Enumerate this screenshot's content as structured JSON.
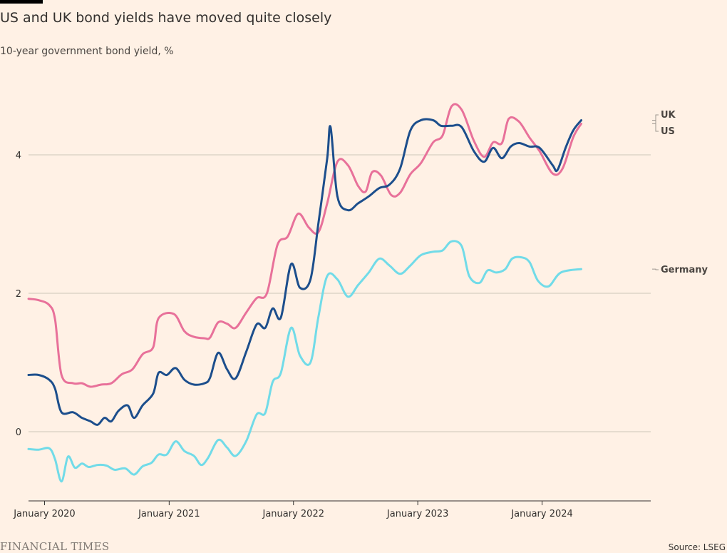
{
  "header": {
    "title": "US and UK bond yields have moved quite closely",
    "subtitle": "10-year government bond yield, %"
  },
  "footer": {
    "logo": "FINANCIAL TIMES",
    "source": "Source: LSEG"
  },
  "colors": {
    "background": "#FFF1E5",
    "UK": "#E8719A",
    "US": "#1C4E8C",
    "Germany": "#71DBE8",
    "gridline": "#CEC6B9",
    "axis": "#33302E"
  },
  "chart_data": {
    "type": "line",
    "title": "US and UK bond yields have moved quite closely",
    "subtitle": "10-year government bond yield, %",
    "xlabel": "",
    "ylabel": "",
    "xlim": [
      "2019-11-15",
      "2024-11-15"
    ],
    "ylim": [
      -1,
      5
    ],
    "y_ticks": [
      0,
      2,
      4
    ],
    "x_ticks": [
      "2020-01-01",
      "2021-01-01",
      "2022-01-01",
      "2023-01-01",
      "2024-01-01"
    ],
    "x_tick_labels": [
      "January 2020",
      "January 2021",
      "January 2022",
      "January 2023",
      "January 2024"
    ],
    "grid": true,
    "legend": "end-of-line labels",
    "series": [
      {
        "name": "UK",
        "points": [
          [
            "2019-11-15",
            1.92
          ],
          [
            "2019-12-15",
            1.9
          ],
          [
            "2020-01-15",
            1.83
          ],
          [
            "2020-02-01",
            1.62
          ],
          [
            "2020-02-20",
            0.82
          ],
          [
            "2020-03-25",
            0.7
          ],
          [
            "2020-04-20",
            0.7
          ],
          [
            "2020-05-15",
            0.65
          ],
          [
            "2020-06-15",
            0.68
          ],
          [
            "2020-07-15",
            0.7
          ],
          [
            "2020-08-15",
            0.83
          ],
          [
            "2020-09-15",
            0.9
          ],
          [
            "2020-10-15",
            1.12
          ],
          [
            "2020-11-15",
            1.22
          ],
          [
            "2020-12-01",
            1.64
          ],
          [
            "2021-01-15",
            1.7
          ],
          [
            "2021-02-15",
            1.45
          ],
          [
            "2021-03-15",
            1.37
          ],
          [
            "2021-04-15",
            1.35
          ],
          [
            "2021-05-01",
            1.36
          ],
          [
            "2021-05-25",
            1.58
          ],
          [
            "2021-06-20",
            1.56
          ],
          [
            "2021-07-15",
            1.5
          ],
          [
            "2021-08-15",
            1.72
          ],
          [
            "2021-09-15",
            1.93
          ],
          [
            "2021-10-15",
            2.0
          ],
          [
            "2021-11-15",
            2.7
          ],
          [
            "2021-12-15",
            2.82
          ],
          [
            "2022-01-15",
            3.15
          ],
          [
            "2022-02-15",
            2.95
          ],
          [
            "2022-03-15",
            2.88
          ],
          [
            "2022-04-10",
            3.3
          ],
          [
            "2022-05-10",
            3.9
          ],
          [
            "2022-06-10",
            3.85
          ],
          [
            "2022-07-10",
            3.55
          ],
          [
            "2022-08-01",
            3.47
          ],
          [
            "2022-08-20",
            3.75
          ],
          [
            "2022-09-15",
            3.7
          ],
          [
            "2022-10-15",
            3.42
          ],
          [
            "2022-11-10",
            3.45
          ],
          [
            "2022-12-10",
            3.72
          ],
          [
            "2023-01-10",
            3.88
          ],
          [
            "2023-02-15",
            4.18
          ],
          [
            "2023-03-15",
            4.28
          ],
          [
            "2023-04-10",
            4.7
          ],
          [
            "2023-05-10",
            4.65
          ],
          [
            "2023-06-15",
            4.2
          ],
          [
            "2023-07-15",
            3.97
          ],
          [
            "2023-08-10",
            4.18
          ],
          [
            "2023-09-05",
            4.17
          ],
          [
            "2023-09-25",
            4.52
          ],
          [
            "2023-10-25",
            4.48
          ],
          [
            "2023-11-25",
            4.25
          ],
          [
            "2023-12-25",
            4.05
          ],
          [
            "2024-02-01",
            3.73
          ],
          [
            "2024-03-01",
            3.8
          ],
          [
            "2024-04-01",
            4.25
          ],
          [
            "2024-04-25",
            4.45
          ]
        ]
      },
      {
        "name": "US",
        "points": [
          [
            "2019-11-15",
            0.82
          ],
          [
            "2019-12-15",
            0.82
          ],
          [
            "2020-01-15",
            0.75
          ],
          [
            "2020-02-01",
            0.62
          ],
          [
            "2020-02-20",
            0.28
          ],
          [
            "2020-03-25",
            0.28
          ],
          [
            "2020-04-20",
            0.2
          ],
          [
            "2020-05-15",
            0.15
          ],
          [
            "2020-06-05",
            0.1
          ],
          [
            "2020-06-25",
            0.2
          ],
          [
            "2020-07-15",
            0.15
          ],
          [
            "2020-08-05",
            0.3
          ],
          [
            "2020-09-01",
            0.38
          ],
          [
            "2020-09-20",
            0.2
          ],
          [
            "2020-10-15",
            0.38
          ],
          [
            "2020-11-15",
            0.55
          ],
          [
            "2020-12-01",
            0.85
          ],
          [
            "2020-12-25",
            0.82
          ],
          [
            "2021-01-20",
            0.92
          ],
          [
            "2021-02-15",
            0.75
          ],
          [
            "2021-03-15",
            0.68
          ],
          [
            "2021-04-15",
            0.7
          ],
          [
            "2021-05-01",
            0.78
          ],
          [
            "2021-05-25",
            1.14
          ],
          [
            "2021-06-20",
            0.9
          ],
          [
            "2021-07-15",
            0.77
          ],
          [
            "2021-08-15",
            1.15
          ],
          [
            "2021-09-15",
            1.55
          ],
          [
            "2021-10-10",
            1.5
          ],
          [
            "2021-11-01",
            1.78
          ],
          [
            "2021-11-25",
            1.65
          ],
          [
            "2021-12-25",
            2.42
          ],
          [
            "2022-01-20",
            2.08
          ],
          [
            "2022-02-20",
            2.2
          ],
          [
            "2022-03-15",
            3.0
          ],
          [
            "2022-04-10",
            3.95
          ],
          [
            "2022-04-20",
            4.4
          ],
          [
            "2022-05-10",
            3.4
          ],
          [
            "2022-06-10",
            3.2
          ],
          [
            "2022-07-10",
            3.3
          ],
          [
            "2022-08-10",
            3.4
          ],
          [
            "2022-09-10",
            3.52
          ],
          [
            "2022-10-10",
            3.57
          ],
          [
            "2022-11-10",
            3.8
          ],
          [
            "2022-12-10",
            4.35
          ],
          [
            "2023-01-10",
            4.5
          ],
          [
            "2023-02-15",
            4.5
          ],
          [
            "2023-03-10",
            4.42
          ],
          [
            "2023-04-10",
            4.42
          ],
          [
            "2023-05-10",
            4.4
          ],
          [
            "2023-06-15",
            4.05
          ],
          [
            "2023-07-15",
            3.9
          ],
          [
            "2023-08-10",
            4.1
          ],
          [
            "2023-09-05",
            3.95
          ],
          [
            "2023-10-01",
            4.12
          ],
          [
            "2023-10-25",
            4.17
          ],
          [
            "2023-11-25",
            4.12
          ],
          [
            "2023-12-25",
            4.1
          ],
          [
            "2024-02-01",
            3.85
          ],
          [
            "2024-02-15",
            3.78
          ],
          [
            "2024-03-10",
            4.1
          ],
          [
            "2024-04-01",
            4.35
          ],
          [
            "2024-04-25",
            4.5
          ]
        ]
      },
      {
        "name": "Germany",
        "points": [
          [
            "2019-11-15",
            -0.25
          ],
          [
            "2019-12-15",
            -0.26
          ],
          [
            "2020-01-15",
            -0.24
          ],
          [
            "2020-02-01",
            -0.4
          ],
          [
            "2020-02-20",
            -0.72
          ],
          [
            "2020-03-10",
            -0.36
          ],
          [
            "2020-03-30",
            -0.52
          ],
          [
            "2020-04-20",
            -0.46
          ],
          [
            "2020-05-10",
            -0.51
          ],
          [
            "2020-06-05",
            -0.48
          ],
          [
            "2020-07-01",
            -0.49
          ],
          [
            "2020-07-25",
            -0.55
          ],
          [
            "2020-08-25",
            -0.53
          ],
          [
            "2020-09-20",
            -0.62
          ],
          [
            "2020-10-15",
            -0.5
          ],
          [
            "2020-11-10",
            -0.45
          ],
          [
            "2020-12-01",
            -0.33
          ],
          [
            "2020-12-25",
            -0.33
          ],
          [
            "2021-01-20",
            -0.14
          ],
          [
            "2021-02-15",
            -0.28
          ],
          [
            "2021-03-15",
            -0.35
          ],
          [
            "2021-04-05",
            -0.48
          ],
          [
            "2021-04-25",
            -0.38
          ],
          [
            "2021-05-25",
            -0.12
          ],
          [
            "2021-06-20",
            -0.23
          ],
          [
            "2021-07-15",
            -0.35
          ],
          [
            "2021-08-15",
            -0.14
          ],
          [
            "2021-09-15",
            0.25
          ],
          [
            "2021-10-10",
            0.27
          ],
          [
            "2021-11-01",
            0.72
          ],
          [
            "2021-11-25",
            0.85
          ],
          [
            "2021-12-25",
            1.5
          ],
          [
            "2022-01-20",
            1.1
          ],
          [
            "2022-02-20",
            1.0
          ],
          [
            "2022-03-15",
            1.65
          ],
          [
            "2022-04-10",
            2.25
          ],
          [
            "2022-05-10",
            2.2
          ],
          [
            "2022-06-10",
            1.95
          ],
          [
            "2022-07-10",
            2.12
          ],
          [
            "2022-08-10",
            2.3
          ],
          [
            "2022-09-10",
            2.5
          ],
          [
            "2022-10-10",
            2.4
          ],
          [
            "2022-11-10",
            2.28
          ],
          [
            "2022-12-10",
            2.4
          ],
          [
            "2023-01-10",
            2.55
          ],
          [
            "2023-02-15",
            2.6
          ],
          [
            "2023-03-15",
            2.62
          ],
          [
            "2023-04-10",
            2.75
          ],
          [
            "2023-05-10",
            2.68
          ],
          [
            "2023-06-01",
            2.25
          ],
          [
            "2023-07-01",
            2.15
          ],
          [
            "2023-07-25",
            2.33
          ],
          [
            "2023-08-20",
            2.3
          ],
          [
            "2023-09-15",
            2.35
          ],
          [
            "2023-10-05",
            2.5
          ],
          [
            "2023-11-01",
            2.52
          ],
          [
            "2023-11-25",
            2.45
          ],
          [
            "2023-12-20",
            2.18
          ],
          [
            "2024-01-20",
            2.1
          ],
          [
            "2024-02-25",
            2.3
          ],
          [
            "2024-04-25",
            2.35
          ]
        ]
      }
    ]
  }
}
